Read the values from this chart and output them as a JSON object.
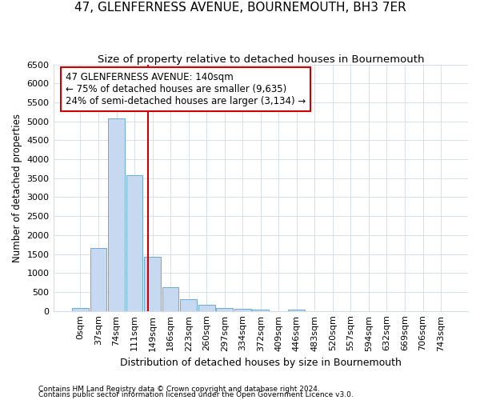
{
  "title": "47, GLENFERNESS AVENUE, BOURNEMOUTH, BH3 7ER",
  "subtitle": "Size of property relative to detached houses in Bournemouth",
  "xlabel": "Distribution of detached houses by size in Bournemouth",
  "ylabel": "Number of detached properties",
  "footnote1": "Contains HM Land Registry data © Crown copyright and database right 2024.",
  "footnote2": "Contains public sector information licensed under the Open Government Licence v3.0.",
  "bar_labels": [
    "0sqm",
    "37sqm",
    "74sqm",
    "111sqm",
    "149sqm",
    "186sqm",
    "223sqm",
    "260sqm",
    "297sqm",
    "334sqm",
    "372sqm",
    "409sqm",
    "446sqm",
    "483sqm",
    "520sqm",
    "557sqm",
    "594sqm",
    "632sqm",
    "669sqm",
    "706sqm",
    "743sqm"
  ],
  "bar_values": [
    75,
    1650,
    5075,
    3575,
    1425,
    625,
    300,
    155,
    75,
    50,
    30,
    0,
    30,
    0,
    0,
    0,
    0,
    0,
    0,
    0,
    0
  ],
  "bar_color": "#c6d9f0",
  "bar_edge_color": "#6aaad4",
  "property_line_x": 3.76,
  "property_line_color": "#cc0000",
  "annotation_text": "47 GLENFERNESS AVENUE: 140sqm\n← 75% of detached houses are smaller (9,635)\n24% of semi-detached houses are larger (3,134) →",
  "annotation_box_color": "#ffffff",
  "annotation_box_edge": "#cc0000",
  "ylim": [
    0,
    6500
  ],
  "yticks": [
    0,
    500,
    1000,
    1500,
    2000,
    2500,
    3000,
    3500,
    4000,
    4500,
    5000,
    5500,
    6000,
    6500
  ],
  "background_color": "#ffffff",
  "grid_color": "#d0dce8",
  "title_fontsize": 11,
  "subtitle_fontsize": 9.5,
  "xlabel_fontsize": 9,
  "ylabel_fontsize": 8.5,
  "tick_fontsize": 8,
  "annotation_fontsize": 8.5,
  "footnote_fontsize": 6.5
}
